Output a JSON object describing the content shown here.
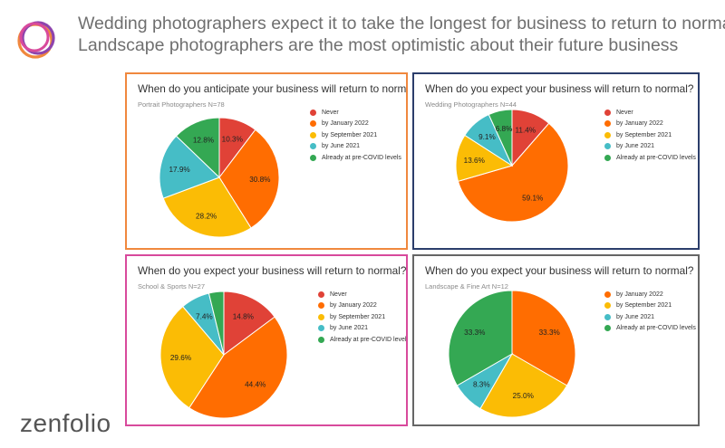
{
  "headline": {
    "line1": "Wedding photographers expect it to take the longest for business to return to normal",
    "line2": "Landscape photographers are the most optimistic about their future business"
  },
  "brand": {
    "name": "zenfolio"
  },
  "colors": {
    "Never": "#e04237",
    "by January 2022": "#ff6d01",
    "by September 2021": "#fbbc05",
    "by June 2021": "#46bdc6",
    "Already at pre-COVID levels": "#34a853"
  },
  "panels": [
    {
      "title": "When do you anticipate your business will return to normal?",
      "subtitle": "Portrait Photographers N=78",
      "border": "#f0883e"
    },
    {
      "title": "When do you expect your business will return to normal?",
      "subtitle": "Wedding Photographers N=44",
      "border": "#2c3e6b"
    },
    {
      "title": "When do you expect your business will return to normal?",
      "subtitle": "School & Sports N=27",
      "border": "#d84a9c"
    },
    {
      "title": "When do you expect your business will return to normal?",
      "subtitle": "Landscape & Fine Art N=12",
      "border": "#666666"
    }
  ],
  "chart_data": [
    {
      "type": "pie",
      "title": "When do you anticipate your business will return to normal?",
      "subtitle": "Portrait Photographers N=78",
      "categories": [
        "Never",
        "by January 2022",
        "by September 2021",
        "by June 2021",
        "Already at pre-COVID levels"
      ],
      "values": [
        10.3,
        30.8,
        28.2,
        17.9,
        12.8
      ],
      "labels": [
        "10.3%",
        "30.8%",
        "28.2%",
        "17.9%",
        "12.8%"
      ],
      "legend": "right"
    },
    {
      "type": "pie",
      "title": "When do you expect your business will return to normal?",
      "subtitle": "Wedding Photographers N=44",
      "categories": [
        "Never",
        "by January 2022",
        "by September 2021",
        "by June 2021",
        "Already at pre-COVID levels"
      ],
      "values": [
        11.4,
        59.1,
        13.6,
        9.1,
        6.8
      ],
      "labels": [
        "11.4%",
        "59.1%",
        "13.6%",
        "9.1%",
        "6.8%"
      ],
      "legend": "right"
    },
    {
      "type": "pie",
      "title": "When do you expect your business will return to normal?",
      "subtitle": "School & Sports N=27",
      "categories": [
        "Never",
        "by January 2022",
        "by September 2021",
        "by June 2021",
        "Already at pre-COVID levels"
      ],
      "values": [
        14.8,
        44.4,
        29.6,
        7.4,
        3.8
      ],
      "labels": [
        "14.8%",
        "44.4%",
        "29.6%",
        "7.4%",
        ""
      ],
      "legend": "right"
    },
    {
      "type": "pie",
      "title": "When do you expect your business will return to normal?",
      "subtitle": "Landscape & Fine Art N=12",
      "categories": [
        "by January 2022",
        "by September 2021",
        "by June 2021",
        "Already at pre-COVID levels"
      ],
      "values": [
        33.3,
        25.0,
        8.3,
        33.3
      ],
      "labels": [
        "33.3%",
        "25.0%",
        "8.3%",
        "33.3%"
      ],
      "legend": "right"
    }
  ]
}
